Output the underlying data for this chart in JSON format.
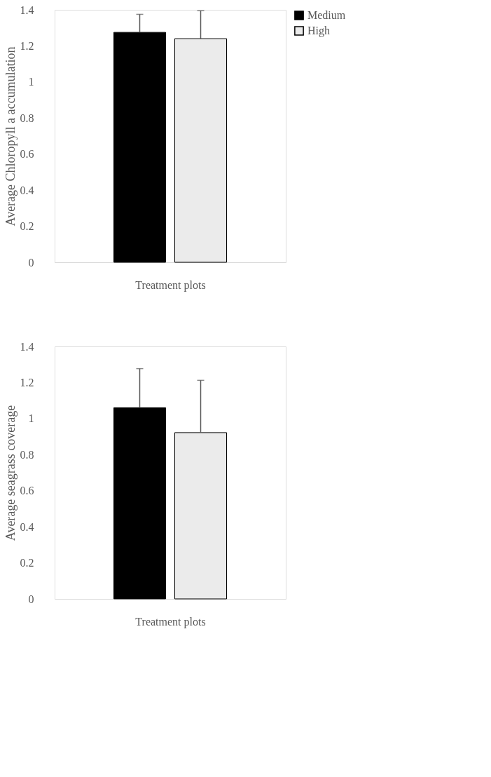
{
  "chart_data": [
    {
      "type": "bar",
      "categories": [
        null
      ],
      "xlabel": "Treatment plots",
      "ylabel": "Average Chloropyll a accumulation",
      "ylim": [
        0,
        1.4
      ],
      "yticks": [
        0,
        0.2,
        0.4,
        0.6,
        0.8,
        1,
        1.2,
        1.4
      ],
      "grid": false,
      "legend": "right",
      "series": [
        {
          "name": "Medium",
          "color": "#000000",
          "values": [
            1.275
          ],
          "errors": [
            [
              1.275,
              1.375
            ]
          ]
        },
        {
          "name": "High",
          "color": "#ebebeb",
          "values": [
            1.24
          ],
          "errors": [
            [
              1.24,
              1.395
            ]
          ]
        }
      ]
    },
    {
      "type": "bar",
      "categories": [
        null
      ],
      "xlabel": "Treatment plots",
      "ylabel": "Average seagrass coverage",
      "ylim": [
        0,
        1.4
      ],
      "yticks": [
        0,
        0.2,
        0.4,
        0.6,
        0.8,
        1,
        1.2,
        1.4
      ],
      "grid": false,
      "legend": "right",
      "series": [
        {
          "name": "Medium",
          "color": "#000000",
          "values": [
            1.06
          ],
          "errors": [
            [
              1.06,
              1.277
            ]
          ]
        },
        {
          "name": "High",
          "color": "#ebebeb",
          "values": [
            0.922
          ],
          "errors": [
            [
              0.922,
              1.212
            ]
          ]
        }
      ]
    }
  ]
}
